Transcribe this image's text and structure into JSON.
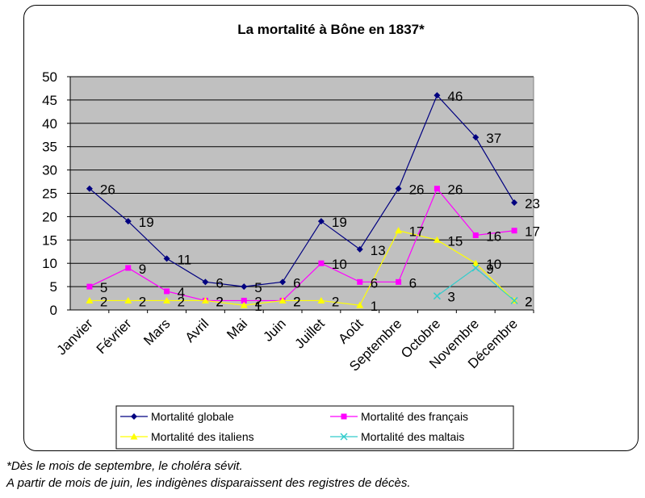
{
  "chart_data": {
    "type": "line",
    "title": "La mortalité à Bône en 1837*",
    "xlabel": "",
    "ylabel": "",
    "ylim": [
      0,
      50
    ],
    "yticks": [
      0,
      5,
      10,
      15,
      20,
      25,
      30,
      35,
      40,
      45,
      50
    ],
    "grid": true,
    "legend_position": "bottom",
    "categories": [
      "Janvier",
      "Février",
      "Mars",
      "Avril",
      "Mai",
      "Juin",
      "Juillet",
      "Août",
      "Septembre",
      "Octobre",
      "Novembre",
      "Décembre"
    ],
    "series": [
      {
        "name": "Mortalité globale",
        "color": "#000080",
        "marker": "diamond",
        "values": [
          26,
          19,
          11,
          6,
          5,
          6,
          19,
          13,
          26,
          46,
          37,
          23
        ]
      },
      {
        "name": "Mortalité des français",
        "color": "#FF00FF",
        "marker": "square",
        "values": [
          5,
          9,
          4,
          2,
          2,
          2,
          10,
          6,
          6,
          26,
          16,
          17
        ]
      },
      {
        "name": "Mortalité des italiens",
        "color": "#FFFF00",
        "marker": "triangle",
        "values": [
          2,
          2,
          2,
          2,
          1,
          2,
          2,
          1,
          17,
          15,
          10,
          2
        ]
      },
      {
        "name": "Mortalité des maltais",
        "color": "#33CCCC",
        "marker": "x",
        "values": [
          null,
          null,
          null,
          null,
          null,
          null,
          null,
          null,
          null,
          3,
          9,
          2
        ]
      }
    ]
  },
  "footnotes": [
    "*Dès le mois de septembre, le choléra sévit.",
    "A partir de mois de juin, les indigènes disparaissent des registres de décès."
  ],
  "colors": {
    "plot_background": "#C0C0C0",
    "gridline": "#000000"
  }
}
